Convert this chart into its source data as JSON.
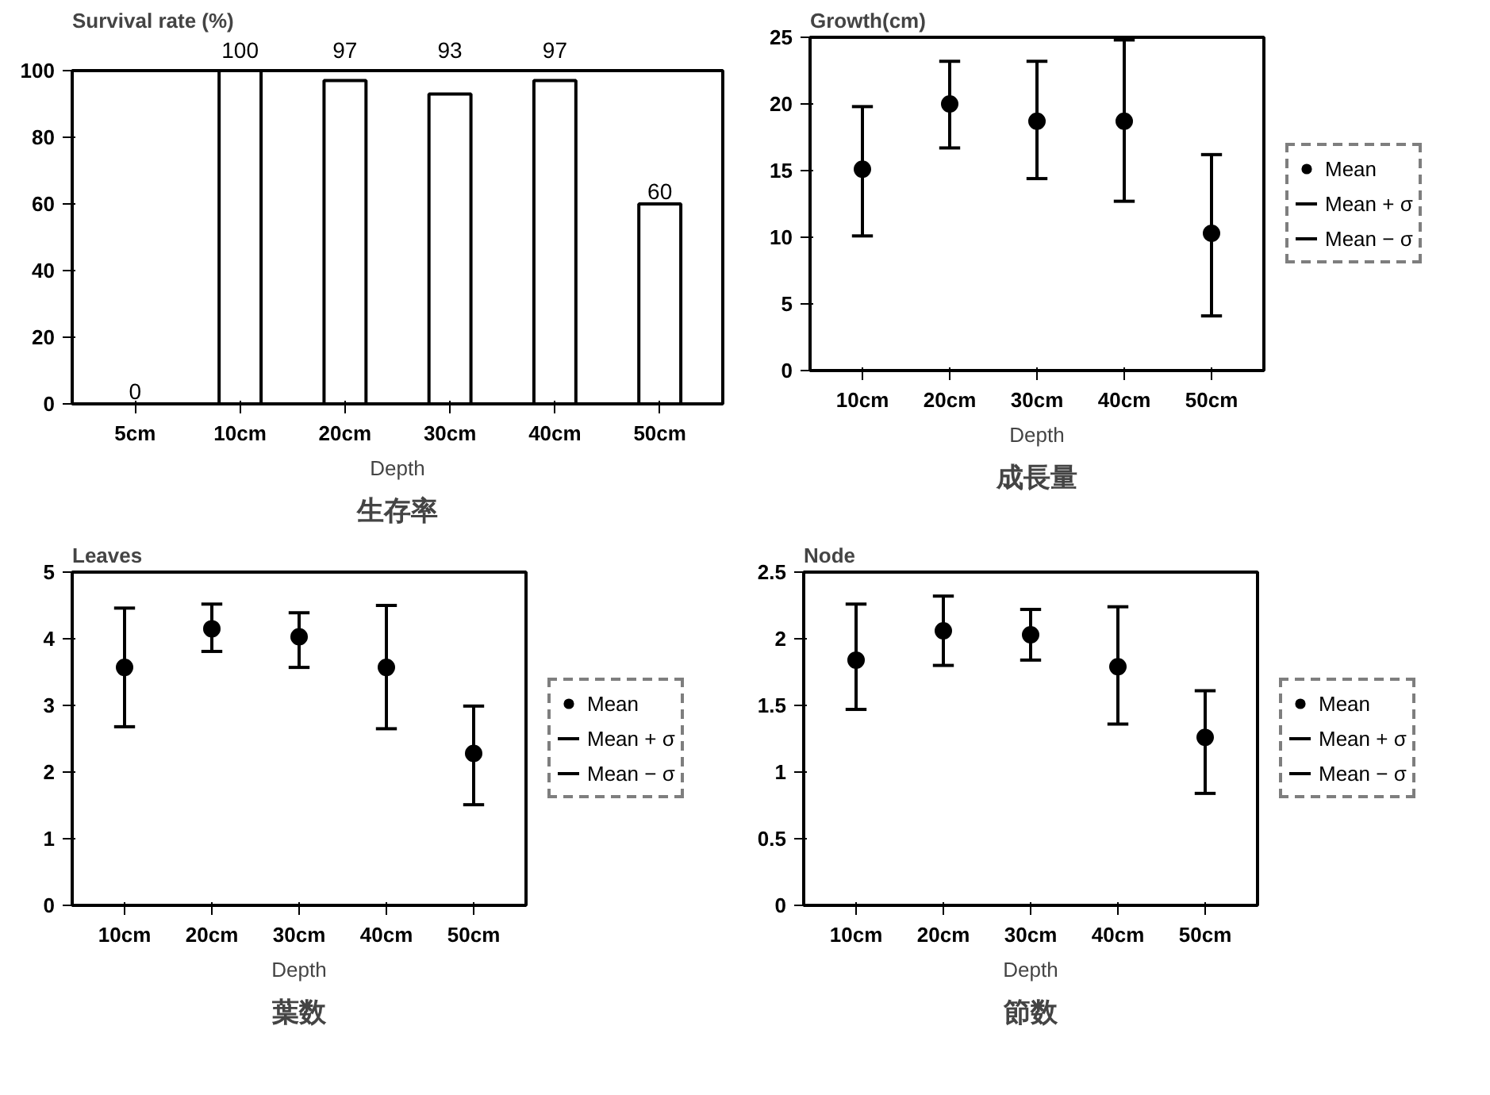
{
  "chart_data": [
    {
      "type": "bar",
      "title": "生存率",
      "ylabel": "Survival rate (%)",
      "xlabel": "Depth",
      "categories": [
        "5cm",
        "10cm",
        "20cm",
        "30cm",
        "40cm",
        "50cm"
      ],
      "values": [
        0,
        100,
        97,
        93,
        97,
        60
      ],
      "color": "#ffffff",
      "ylim": [
        0,
        100
      ],
      "yticks": [
        0,
        20,
        40,
        60,
        80,
        100
      ],
      "data_labels": true
    },
    {
      "type": "scatter",
      "title": "成長量",
      "ylabel": "Growth(cm)",
      "xlabel": "Depth",
      "categories": [
        "10cm",
        "20cm",
        "30cm",
        "40cm",
        "50cm"
      ],
      "ylim": [
        0,
        25
      ],
      "yticks": [
        0,
        5,
        10,
        15,
        20,
        25
      ],
      "legend": "right",
      "marker": "circle",
      "annotations": [
        "Mean + σ",
        "Mean − σ"
      ],
      "series": [
        {
          "name": "Mean",
          "color": "#000000",
          "values": [
            15.1,
            20.0,
            18.7,
            18.7,
            10.3
          ],
          "errors": [
            [
              10.1,
              19.8
            ],
            [
              16.7,
              23.2
            ],
            [
              14.4,
              23.2
            ],
            [
              12.7,
              24.8
            ],
            [
              4.1,
              16.2
            ]
          ]
        }
      ]
    },
    {
      "type": "scatter",
      "title": "葉数",
      "ylabel": "Leaves",
      "xlabel": "Depth",
      "categories": [
        "10cm",
        "20cm",
        "30cm",
        "40cm",
        "50cm"
      ],
      "ylim": [
        0,
        5
      ],
      "yticks": [
        0,
        1,
        2,
        3,
        4,
        5
      ],
      "legend": "right",
      "marker": "circle",
      "annotations": [
        "Mean + σ",
        "Mean − σ"
      ],
      "series": [
        {
          "name": "Mean",
          "color": "#000000",
          "values": [
            3.57,
            4.15,
            4.03,
            3.57,
            2.28
          ],
          "errors": [
            [
              2.68,
              4.46
            ],
            [
              3.81,
              4.52
            ],
            [
              3.57,
              4.39
            ],
            [
              2.65,
              4.5
            ],
            [
              1.51,
              2.99
            ]
          ]
        }
      ]
    },
    {
      "type": "scatter",
      "title": "節数",
      "ylabel": "Node",
      "xlabel": "Depth",
      "categories": [
        "10cm",
        "20cm",
        "30cm",
        "40cm",
        "50cm"
      ],
      "ylim": [
        0,
        2.5
      ],
      "yticks": [
        0,
        0.5,
        1,
        1.5,
        2,
        2.5
      ],
      "legend": "right",
      "marker": "circle",
      "annotations": [
        "Mean + σ",
        "Mean − σ"
      ],
      "series": [
        {
          "name": "Mean",
          "color": "#000000",
          "values": [
            1.84,
            2.06,
            2.03,
            1.79,
            1.26
          ],
          "errors": [
            [
              1.47,
              2.26
            ],
            [
              1.8,
              2.32
            ],
            [
              1.84,
              2.22
            ],
            [
              1.36,
              2.24
            ],
            [
              0.84,
              1.61
            ]
          ]
        }
      ]
    }
  ]
}
